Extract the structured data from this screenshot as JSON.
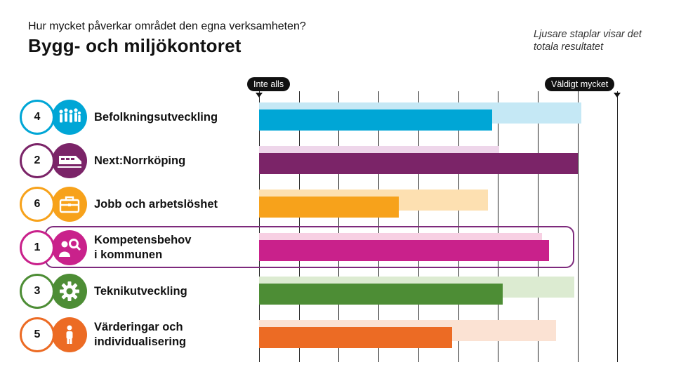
{
  "header": {
    "question": "Hur mycket påverkar området den egna verksamheten?",
    "title": "Bygg- och miljökontoret",
    "note": "Ljusare staplar visar det totala resultatet"
  },
  "scale": {
    "left_label": "Inte alls",
    "right_label": "Väldigt mycket"
  },
  "chart_data": {
    "type": "bar",
    "orientation": "horizontal",
    "xlim": [
      0,
      10
    ],
    "categories": [
      "Befolkningsutveckling",
      "Next:Norrköping",
      "Jobb och arbetslöshet",
      "Kompetensbehov\ni kommunen",
      "Teknikutveckling",
      "Värderingar och\nindividualisering"
    ],
    "ranks": [
      "4",
      "2",
      "6",
      "1",
      "3",
      "5"
    ],
    "icons": [
      "people-icon",
      "train-icon",
      "briefcase-icon",
      "person-search-icon",
      "gear-icon",
      "person-icon"
    ],
    "colors": [
      "#00a6d6",
      "#7b2468",
      "#f7a21b",
      "#c9218b",
      "#4d8d35",
      "#ec6b24"
    ],
    "light_colors": [
      "#c5e8f5",
      "#eed6ea",
      "#fde0b1",
      "#f7d0e3",
      "#dcebd1",
      "#fbe2d3"
    ],
    "series": [
      {
        "values": [
          9.0,
          6.7,
          6.4,
          7.9,
          8.8,
          8.3
        ]
      },
      {
        "values": [
          6.5,
          8.9,
          3.9,
          8.1,
          6.8,
          5.4
        ]
      }
    ],
    "highlighted": "Kompetensbehov\ni kommunen"
  }
}
